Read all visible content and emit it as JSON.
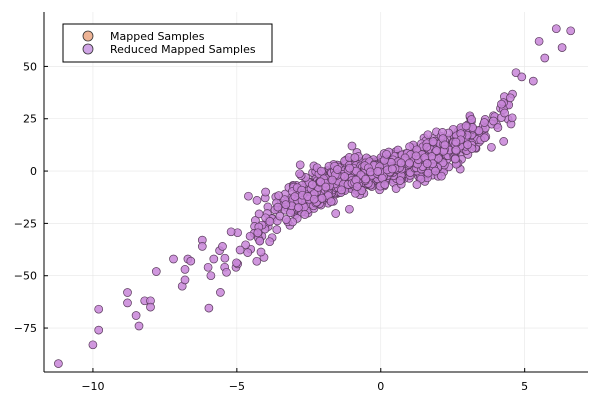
{
  "chart_data": {
    "type": "scatter",
    "title": "",
    "xlabel": "",
    "ylabel": "",
    "xlim": [
      -11.7,
      7.2
    ],
    "ylim": [
      -96,
      76
    ],
    "x_ticks": [
      -10,
      -5,
      0,
      5
    ],
    "y_ticks": [
      -75,
      -50,
      -25,
      0,
      25,
      50
    ],
    "grid": true,
    "legend_placement": "top-left",
    "series": [
      {
        "name": "Mapped Samples",
        "color": "#e9a07a",
        "generator": "y ≈ x^3/5 + 3x + noise",
        "points": [
          [
            -11.2,
            -92
          ],
          [
            -10.0,
            -83
          ],
          [
            -9.8,
            -66
          ],
          [
            -9.8,
            -76
          ],
          [
            -8.8,
            -58
          ],
          [
            -8.8,
            -63
          ],
          [
            -8.5,
            -69
          ],
          [
            -8.4,
            -74
          ],
          [
            -8.2,
            -62
          ],
          [
            -8.0,
            -62
          ],
          [
            -8.0,
            -65
          ],
          [
            -7.8,
            -48
          ],
          [
            -7.2,
            -42
          ],
          [
            -6.9,
            -55
          ],
          [
            -6.8,
            -52
          ],
          [
            -6.8,
            -47
          ],
          [
            -6.7,
            -42
          ],
          [
            -6.6,
            -43
          ],
          [
            -6.2,
            -33
          ],
          [
            -6.2,
            -36
          ],
          [
            -6.0,
            -46
          ],
          [
            -5.9,
            -50
          ],
          [
            -5.8,
            -42
          ],
          [
            -5.6,
            -38
          ],
          [
            -5.5,
            -36
          ],
          [
            -5.2,
            -29
          ],
          [
            -4.6,
            -12
          ],
          [
            -4.0,
            -10
          ],
          [
            -4.3,
            -14
          ],
          [
            -3.3,
            -16
          ],
          [
            4.5,
            35
          ],
          [
            4.7,
            47
          ],
          [
            4.9,
            45
          ],
          [
            5.3,
            43
          ],
          [
            5.5,
            62
          ],
          [
            5.7,
            54
          ],
          [
            6.1,
            68
          ],
          [
            6.3,
            59
          ],
          [
            6.6,
            67
          ],
          [
            -2.8,
            3
          ],
          [
            -1.0,
            12
          ],
          [
            0.2,
            8
          ],
          [
            0.4,
            1
          ],
          [
            1.9,
            0
          ]
        ]
      },
      {
        "name": "Reduced Mapped Samples",
        "color": "#c48ee0",
        "points": []
      }
    ]
  },
  "legend": {
    "item1": "Mapped Samples",
    "item2": "Reduced Mapped Samples"
  }
}
